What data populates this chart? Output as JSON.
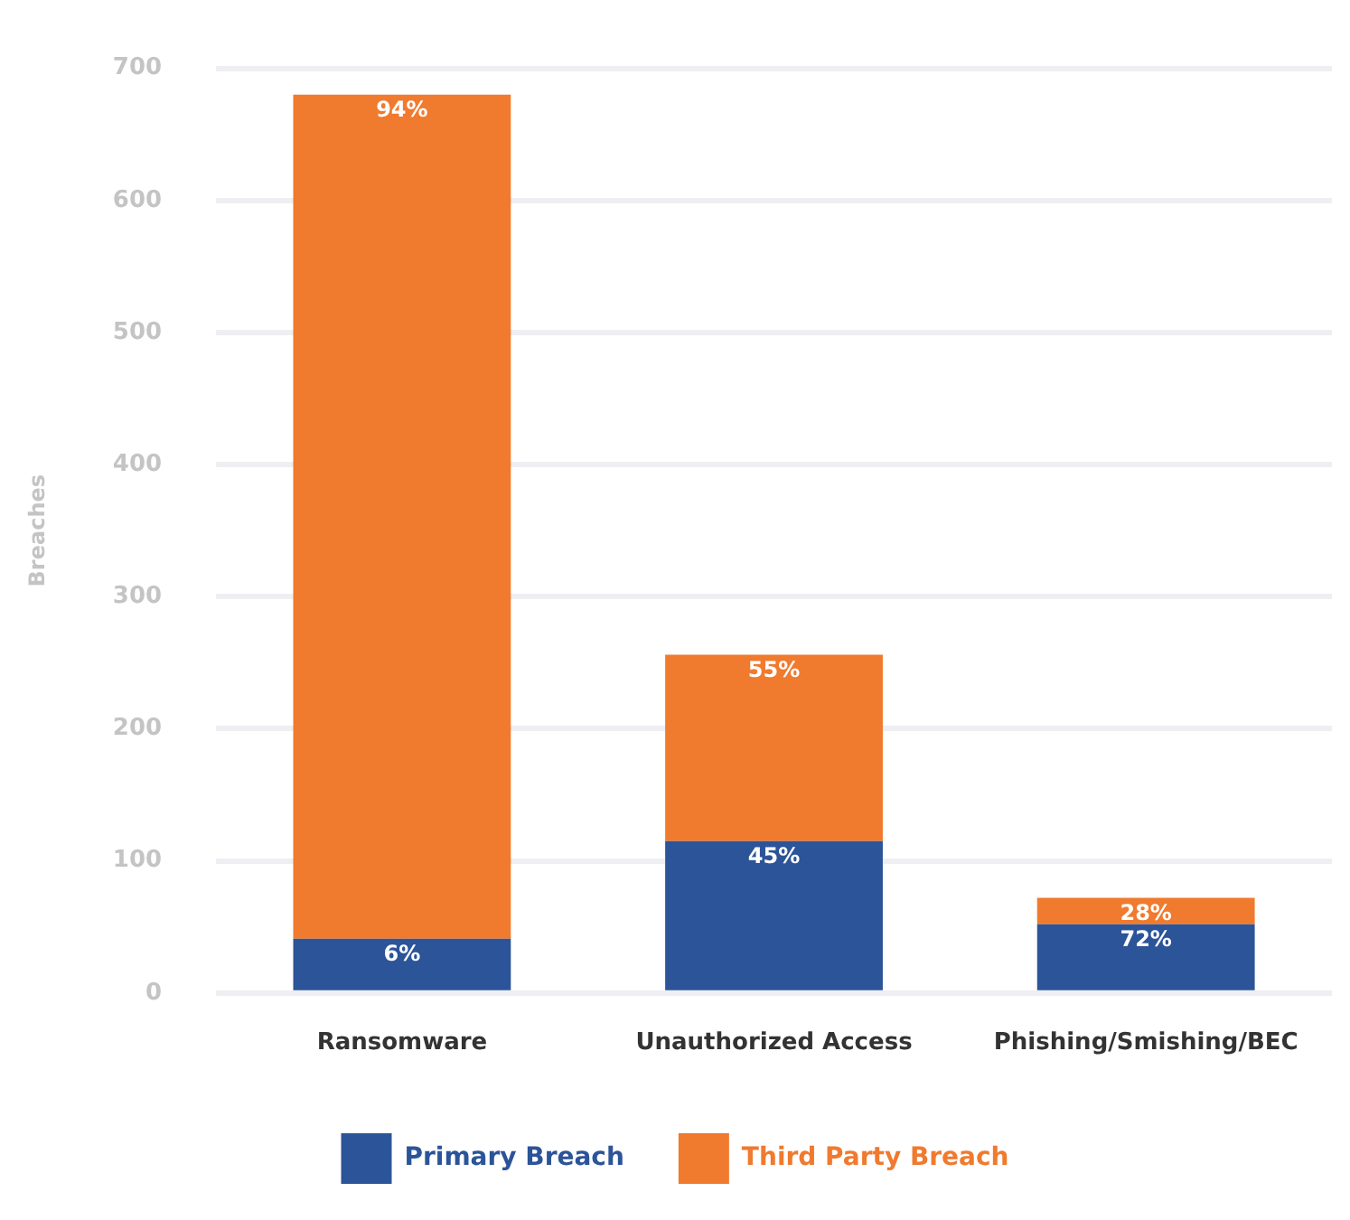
{
  "chart_data": {
    "type": "bar",
    "stacked": true,
    "ylabel": "Breaches",
    "categories": [
      "Ransomware",
      "Unauthorized Access",
      "Phishing/Smishing/BEC"
    ],
    "series": [
      {
        "name": "Primary Breach",
        "color": "#2c5498",
        "values": [
          41,
          115,
          52
        ]
      },
      {
        "name": "Third Party Breach",
        "color": "#f07a2e",
        "values": [
          639,
          141,
          20
        ]
      }
    ],
    "annotations": [
      {
        "text": "6%",
        "x": "Ransomware",
        "y": 41
      },
      {
        "text": "94%",
        "x": "Ransomware",
        "y": 680
      },
      {
        "text": "45%",
        "x": "Unauthorized Access",
        "y": 115
      },
      {
        "text": "55%",
        "x": "Unauthorized Access",
        "y": 256
      },
      {
        "text": "72%",
        "x": "Phishing/Smishing/BEC",
        "y": 52
      },
      {
        "text": "28%",
        "x": "Phishing/Smishing/BEC",
        "y": 72
      }
    ],
    "ylim": [
      0,
      700
    ],
    "yticks": [
      0,
      100,
      200,
      300,
      400,
      500,
      600,
      700
    ],
    "grid": "y",
    "legend": "bottom"
  }
}
